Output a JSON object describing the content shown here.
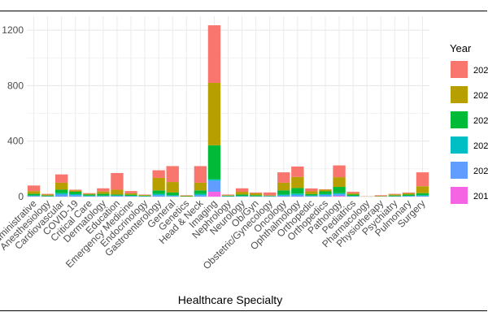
{
  "chart_data": {
    "type": "bar",
    "stacked": true,
    "title": "",
    "xlabel": "Healthcare Specialty",
    "ylabel": "",
    "ylim": [
      0,
      1300
    ],
    "yticks": [
      0,
      400,
      800,
      1200
    ],
    "grid": true,
    "legend": {
      "title": "Year",
      "position": "right"
    },
    "categories": [
      "Administrative",
      "Anesthesiology",
      "Cardiovascular",
      "COVID-19",
      "Critical Care",
      "Dermatology",
      "Education",
      "Emergency Medicine",
      "Endocrinology",
      "Gastroenterology",
      "General",
      "Genetics",
      "Head & Neck",
      "Imaging",
      "Nephrology",
      "Neurology",
      "Ob/Gyn",
      "Obstetric/Gynecology",
      "Oncology",
      "Ophthalmology",
      "Orthopedic",
      "Orthopedics",
      "Pathology",
      "Pediatrics",
      "Pharmacology",
      "Physiotherapy",
      "Psychiatry",
      "Pulmonary",
      "Surgery"
    ],
    "series": [
      {
        "name": "201",
        "color": "#F564E3",
        "values": [
          0,
          0,
          0,
          0,
          0,
          0,
          0,
          0,
          0,
          0,
          0,
          0,
          0,
          35,
          0,
          0,
          0,
          0,
          0,
          0,
          0,
          0,
          5,
          0,
          0,
          0,
          0,
          0,
          0
        ]
      },
      {
        "name": "202",
        "color": "#619CFF",
        "values": [
          5,
          2,
          15,
          10,
          4,
          4,
          5,
          4,
          2,
          10,
          5,
          0,
          10,
          80,
          2,
          3,
          2,
          3,
          8,
          12,
          5,
          12,
          12,
          3,
          0,
          0,
          2,
          4,
          5
        ]
      },
      {
        "name": "202",
        "color": "#00BFC4",
        "values": [
          3,
          1,
          10,
          8,
          3,
          3,
          3,
          2,
          1,
          10,
          5,
          0,
          10,
          10,
          1,
          2,
          1,
          1,
          7,
          10,
          3,
          6,
          8,
          2,
          0,
          0,
          1,
          2,
          5
        ]
      },
      {
        "name": "202",
        "color": "#00BA38",
        "values": [
          12,
          5,
          25,
          17,
          8,
          13,
          7,
          8,
          4,
          25,
          20,
          3,
          25,
          245,
          4,
          10,
          7,
          2,
          30,
          40,
          10,
          20,
          45,
          10,
          0,
          2,
          5,
          9,
          15
        ]
      },
      {
        "name": "202",
        "color": "#B79F00",
        "values": [
          20,
          7,
          50,
          10,
          5,
          17,
          35,
          10,
          5,
          90,
          75,
          4,
          55,
          450,
          4,
          20,
          15,
          4,
          55,
          80,
          20,
          12,
          70,
          10,
          1,
          3,
          8,
          10,
          50
        ]
      },
      {
        "name": "202",
        "color": "#F8766D",
        "values": [
          40,
          5,
          60,
          5,
          5,
          23,
          120,
          16,
          3,
          55,
          115,
          3,
          120,
          415,
          4,
          25,
          5,
          20,
          75,
          75,
          21,
          3,
          85,
          10,
          1,
          5,
          4,
          5,
          100
        ]
      }
    ]
  }
}
